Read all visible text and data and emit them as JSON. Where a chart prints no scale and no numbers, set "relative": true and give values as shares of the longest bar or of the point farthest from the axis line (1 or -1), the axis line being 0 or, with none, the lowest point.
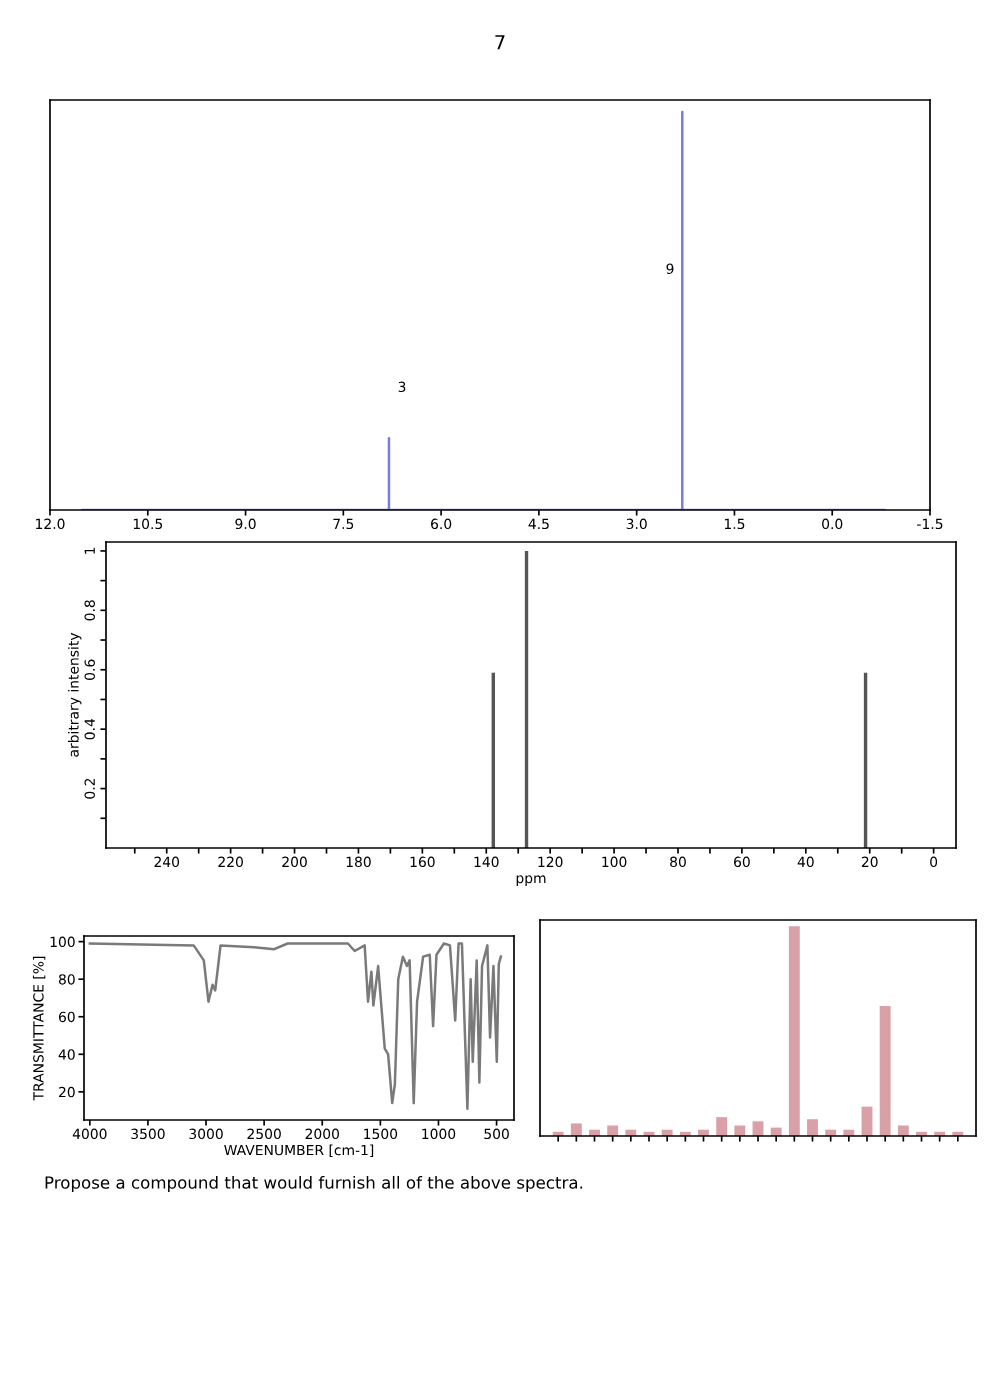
{
  "chart_data": [
    {
      "type": "line",
      "relative": true,
      "color": "#7b7bdc",
      "tick_labels": "x",
      "x": [
        11.5,
        6.8,
        6.8,
        6.8,
        2.3,
        2.3,
        2.3,
        -0.8
      ],
      "values": [
        0,
        0,
        0.18,
        0,
        0,
        1,
        0,
        0
      ],
      "xlim": [
        12.0,
        -1.5
      ],
      "xticks": [
        {
          "value": 12.0,
          "label": "12.0"
        },
        {
          "value": 10.5,
          "label": "10.5"
        },
        {
          "value": 9.0,
          "label": "9.0"
        },
        {
          "value": 7.5,
          "label": "7.5"
        },
        {
          "value": 6.0,
          "label": "6.0"
        },
        {
          "value": 4.5,
          "label": "4.5"
        },
        {
          "value": 3.0,
          "label": "3.0"
        },
        {
          "value": 1.5,
          "label": "1.5"
        },
        {
          "value": 0.0,
          "label": "0.0"
        },
        {
          "value": -1.5,
          "label": "-1.5"
        }
      ],
      "annotations": [
        "7",
        "3",
        "9"
      ]
    },
    {
      "type": "bar",
      "color": "#555555",
      "xlabel": "ppm",
      "ylabel": "arbitrary intensity",
      "x": [
        137.8,
        127.4,
        21.3
      ],
      "values": [
        0.59,
        1.0,
        0.59
      ],
      "xlim": [
        259,
        -7
      ],
      "ylim": [
        0,
        1.03
      ],
      "xticks": [
        {
          "value": 250,
          "label": null
        },
        240,
        {
          "value": 230,
          "label": null
        },
        220,
        {
          "value": 210,
          "label": null
        },
        200,
        {
          "value": 190,
          "label": null
        },
        180,
        {
          "value": 170,
          "label": null
        },
        160,
        {
          "value": 150,
          "label": null
        },
        140,
        {
          "value": 130,
          "label": null
        },
        120,
        {
          "value": 110,
          "label": null
        },
        100,
        {
          "value": 90,
          "label": null
        },
        80,
        {
          "value": 70,
          "label": null
        },
        60,
        {
          "value": 50,
          "label": null
        },
        40,
        {
          "value": 30,
          "label": null
        },
        20,
        {
          "value": 10,
          "label": null
        },
        0
      ],
      "yticks": [
        {
          "value": 0.1,
          "label": null
        },
        0.2,
        {
          "value": 0.3,
          "label": null
        },
        0.4,
        {
          "value": 0.5,
          "label": null
        },
        0.6,
        {
          "value": 0.7,
          "label": null
        },
        0.8,
        {
          "value": 0.9,
          "label": null
        },
        1
      ]
    },
    {
      "type": "line",
      "color": "#7a7a7a",
      "xlabel": "WAVENUMBER [cm-1]",
      "ylabel": "TRANSMITTANCE [%]",
      "x": [
        4000,
        3106,
        3019,
        2979,
        2944,
        2921,
        2875,
        2586,
        2413,
        2298,
        1779,
        1721,
        1635,
        1606,
        1577,
        1560,
        1519,
        1462,
        1433,
        1398,
        1375,
        1346,
        1306,
        1271,
        1248,
        1213,
        1184,
        1132,
        1075,
        1046,
        1017,
        953,
        901,
        856,
        827,
        798,
        751,
        723,
        705,
        671,
        648,
        625,
        579,
        556,
        527,
        498,
        481,
        463
      ],
      "values": [
        99,
        98,
        90,
        68,
        77,
        74,
        98,
        97,
        96,
        99,
        99,
        95,
        98,
        68,
        84,
        66,
        87,
        43,
        40,
        14,
        24,
        80,
        92,
        87,
        90,
        14,
        68,
        92,
        93,
        55,
        93,
        99,
        98,
        58,
        99,
        99,
        11,
        80,
        36,
        90,
        25,
        87,
        98,
        49,
        87,
        36,
        88,
        92
      ],
      "xlim": [
        4050,
        350
      ],
      "ylim": [
        5,
        103
      ],
      "xticks": [
        4000,
        3500,
        3000,
        2500,
        2000,
        1500,
        1000,
        500
      ],
      "yticks": [
        20,
        40,
        60,
        80,
        100
      ],
      "annotations": [
        "Propose a compound that would furnish all of the above spectra."
      ]
    },
    {
      "type": "bar",
      "relative": true,
      "color": "#d9a0a8",
      "categories": [
        null,
        null,
        null,
        null,
        null,
        null,
        null,
        null,
        null,
        null,
        null,
        null,
        null,
        null,
        null,
        null,
        null,
        null,
        null,
        null,
        null,
        null,
        null
      ],
      "values": [
        0.02,
        0.06,
        0.03,
        0.05,
        0.03,
        0.02,
        0.03,
        0.02,
        0.03,
        0.09,
        0.05,
        0.07,
        0.04,
        1.0,
        0.08,
        0.03,
        0.03,
        0.14,
        0.62,
        0.05,
        0.02,
        0.02,
        0.02
      ]
    }
  ]
}
